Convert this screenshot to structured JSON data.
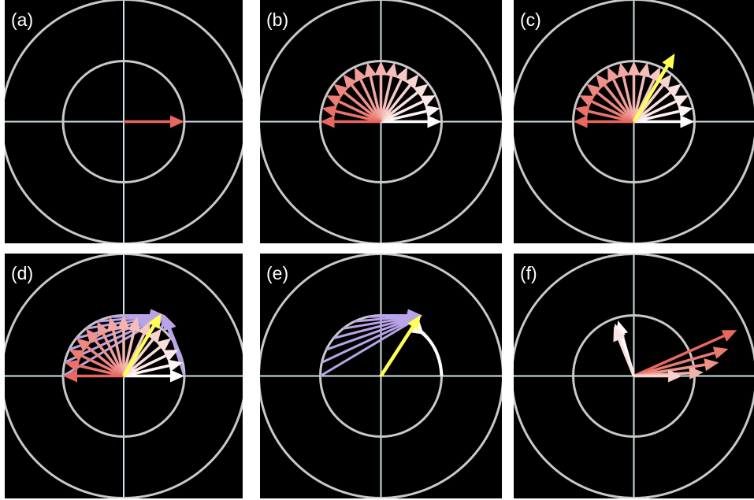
{
  "colors": {
    "background": "#000000",
    "circles": "#c9c9c9",
    "axes": "#cfe3ea",
    "red_arrow": "#e8675f",
    "pale_arrow": "#fbe9e6",
    "white_arrow": "#ffffff",
    "yellow_arrow": "#ffff55",
    "lavender_arrow": "#b8a4e6"
  },
  "panels": [
    {
      "id": "a",
      "label": "(a)",
      "arrows": [
        {
          "angle": 0,
          "length": 1.0,
          "color": "#e8675f"
        }
      ]
    },
    {
      "id": "b",
      "label": "(b)",
      "fan": {
        "from_angle": 0,
        "to_angle": 180,
        "count": 15,
        "length": 1.0,
        "color_start": "#ffffff",
        "color_end": "#e8675f"
      }
    },
    {
      "id": "c",
      "label": "(c)",
      "fan": {
        "from_angle": 0,
        "to_angle": 180,
        "count": 15,
        "length": 1.0,
        "color_start": "#ffffff",
        "color_end": "#e8675f"
      },
      "arrows": [
        {
          "angle": 59,
          "length": 1.31,
          "color": "#ffff55"
        }
      ]
    },
    {
      "id": "d",
      "label": "(d)",
      "fan": {
        "from_angle": 0,
        "to_angle": 180,
        "count": 15,
        "length": 1.0,
        "color_start": "#ffffff",
        "color_end": "#e8675f"
      },
      "lavender_fan": {
        "tip_x": 0.68,
        "tip_y": 1.0,
        "from_angle": 0,
        "to_angle": 180,
        "count": 15,
        "length": 1.0
      },
      "arrows": [
        {
          "angle": 59,
          "length": 1.2,
          "color": "#ffff55"
        }
      ]
    },
    {
      "id": "e",
      "label": "(e)",
      "lavender_fan": {
        "tip_x": 0.68,
        "tip_y": 1.0,
        "from_angle": 90,
        "to_angle": 180,
        "count": 8,
        "length": 1.0
      },
      "white_arc": {
        "cx": 0.68,
        "cy": 0.0,
        "from_angle": 0,
        "to_angle": 85,
        "radius": 1.0
      },
      "arrows": [
        {
          "angle": 57,
          "length": 1.2,
          "color": "#ffff55"
        }
      ]
    },
    {
      "id": "f",
      "label": "(f)",
      "arrows": [
        {
          "angle": 24,
          "length": 1.86,
          "color": "#e8675f"
        },
        {
          "angle": 16,
          "length": 1.62,
          "color": "#ea7a72"
        },
        {
          "angle": 9,
          "length": 1.42,
          "color": "#ee9189"
        },
        {
          "angle": 3,
          "length": 1.15,
          "color": "#f3b1aa"
        },
        {
          "angle": 0,
          "length": 0.8,
          "color": "#f8d2cd"
        },
        {
          "angle": 106,
          "length": 0.95,
          "color": "#ffffff"
        },
        {
          "angle": 110,
          "length": 0.92,
          "color": "#fbeeee"
        },
        {
          "angle": 112,
          "length": 0.88,
          "color": "#f7e4e2"
        }
      ]
    }
  ]
}
